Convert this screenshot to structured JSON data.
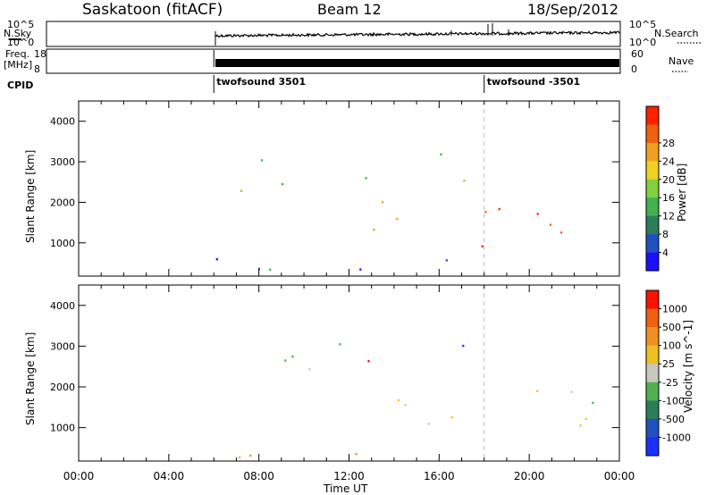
{
  "header": {
    "station": "Saskatoon (fitACF)",
    "beam": "Beam 12",
    "date": "18/Sep/2012"
  },
  "top_panels": {
    "nsky": {
      "label": "N.Sky",
      "tick_top": "10^5",
      "tick_bottom": "10^0"
    },
    "nsearch": {
      "label": "N.Search",
      "tick_top": "10^5",
      "tick_bottom": "10^0"
    },
    "freq": {
      "label_line1": "Freq.",
      "label_line2": "[MHz]",
      "tick_top": "18",
      "tick_bottom": "8"
    },
    "nave": {
      "label": "Nave",
      "tick_top": "60",
      "tick_bottom": "0"
    },
    "cpid": {
      "label": "CPID",
      "entries": [
        {
          "name": "twofsound 3501",
          "start_hour": 6
        },
        {
          "name": "twofsound -3501",
          "start_hour": 18
        }
      ]
    }
  },
  "chart_data": [
    {
      "type": "heatmap",
      "name": "power",
      "ylabel": "Slant Range [km]",
      "ylim": [
        180,
        4500
      ],
      "yticks": [
        "1000",
        "2000",
        "3000",
        "4000"
      ],
      "xlim": [
        0,
        24
      ],
      "colorbar": {
        "label": "Power [dB]",
        "ticks": [
          "4",
          "8",
          "12",
          "16",
          "20",
          "24",
          "28"
        ],
        "colors": [
          "#1a10ff",
          "#2050c0",
          "#2a7f5a",
          "#40b050",
          "#80d040",
          "#f0d020",
          "#f0a020",
          "#f06010",
          "#ff2000"
        ]
      },
      "regions": [
        {
          "t": [
            6.0,
            13.0
          ],
          "r": [
            2300,
            3150
          ],
          "level": 0.45
        },
        {
          "t": [
            13.0,
            24.0
          ],
          "r": [
            900,
            2100
          ],
          "level": 0.8
        },
        {
          "t": [
            6.0,
            24.0
          ],
          "r": [
            200,
            700
          ],
          "level": 0.2
        },
        {
          "t": [
            14.0,
            17.5
          ],
          "r": [
            2500,
            3300
          ],
          "level": 0.45
        }
      ]
    },
    {
      "type": "heatmap",
      "name": "velocity",
      "ylabel": "Slant Range [km]",
      "ylim": [
        180,
        4500
      ],
      "yticks": [
        "1000",
        "2000",
        "3000",
        "4000"
      ],
      "xlim": [
        0,
        24
      ],
      "colorbar": {
        "label": "Velocity [m s^-1]",
        "ticks": [
          "1000",
          "500",
          "100",
          "25",
          "-25",
          "-100",
          "-500",
          "-1000"
        ],
        "colors": [
          "#1a30ff",
          "#2050c0",
          "#2a7f5a",
          "#50b050",
          "#c8c8c0",
          "#f0c020",
          "#f09020",
          "#f06010",
          "#ff1000"
        ]
      },
      "regions": [
        {
          "t": [
            6.0,
            13.0
          ],
          "r": [
            2300,
            3150
          ],
          "level": 0.5
        },
        {
          "t": [
            13.0,
            24.0
          ],
          "r": [
            900,
            2100
          ],
          "level": 0.5
        },
        {
          "t": [
            12.8,
            14.2
          ],
          "r": [
            1500,
            2800
          ],
          "level": 0.85
        },
        {
          "t": [
            15.5,
            17.5
          ],
          "r": [
            2900,
            3350
          ],
          "level": 0.15
        },
        {
          "t": [
            6.0,
            13.0
          ],
          "r": [
            200,
            700
          ],
          "level": 0.7
        }
      ]
    }
  ],
  "xaxis": {
    "label": "Time UT",
    "ticks": [
      "00:00",
      "04:00",
      "08:00",
      "12:00",
      "16:00",
      "20:00",
      "00:00"
    ],
    "tick_hours": [
      0,
      4,
      8,
      12,
      16,
      20,
      24
    ]
  }
}
